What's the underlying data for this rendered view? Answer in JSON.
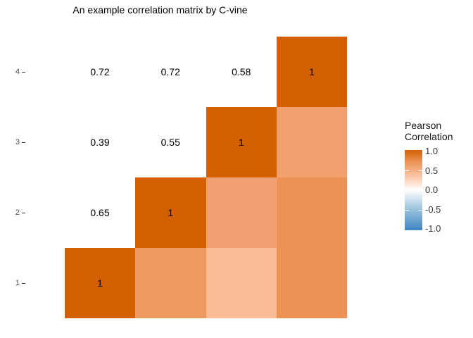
{
  "title": "An example correlation matrix by C-vine",
  "axes": {
    "y_labels": [
      "4",
      "3",
      "2",
      "1"
    ]
  },
  "legend": {
    "title_lines": [
      "Pearson",
      "Correlation"
    ],
    "tick_labels": [
      "1.0",
      "0.5",
      "0.0",
      "-0.5",
      "-1.0"
    ],
    "colors": {
      "high": "#D45F00",
      "mid": "#FFFFFF",
      "low": "#3D85C2",
      "gradient_stops": [
        "#D45F00",
        "#EC9254",
        "#FABD98",
        "#FFFFFF",
        "#A9CBE3",
        "#6FA6D1",
        "#3D85C2"
      ]
    }
  },
  "cells": {
    "text_labels": [
      {
        "row": 4,
        "col": 1,
        "text": "0.72"
      },
      {
        "row": 4,
        "col": 2,
        "text": "0.72"
      },
      {
        "row": 4,
        "col": 3,
        "text": "0.58"
      },
      {
        "row": 3,
        "col": 1,
        "text": "0.39"
      },
      {
        "row": 3,
        "col": 2,
        "text": "0.55"
      },
      {
        "row": 2,
        "col": 1,
        "text": "0.65"
      }
    ],
    "tiles": [
      {
        "row": 4,
        "col": 4,
        "value": 1,
        "label": "1",
        "color": "#D45F00"
      },
      {
        "row": 3,
        "col": 3,
        "value": 1,
        "label": "1",
        "color": "#D45F00"
      },
      {
        "row": 2,
        "col": 2,
        "value": 1,
        "label": "1",
        "color": "#D45F00"
      },
      {
        "row": 1,
        "col": 1,
        "value": 1,
        "label": "1",
        "color": "#D45F00"
      },
      {
        "row": 3,
        "col": 4,
        "value": 0.58,
        "label": "",
        "color": "#F2A06E"
      },
      {
        "row": 2,
        "col": 3,
        "value": 0.55,
        "label": "",
        "color": "#F2A272"
      },
      {
        "row": 2,
        "col": 4,
        "value": 0.72,
        "label": "",
        "color": "#EC9254"
      },
      {
        "row": 1,
        "col": 2,
        "value": 0.65,
        "label": "",
        "color": "#EE9960"
      },
      {
        "row": 1,
        "col": 3,
        "value": 0.39,
        "label": "",
        "color": "#FABD98"
      },
      {
        "row": 1,
        "col": 4,
        "value": 0.72,
        "label": "",
        "color": "#EC9254"
      }
    ]
  },
  "chart_data": {
    "type": "heatmap",
    "title": "An example correlation matrix by C-vine",
    "variables": [
      "1",
      "2",
      "3",
      "4"
    ],
    "matrix": [
      [
        1.0,
        0.65,
        0.39,
        0.72
      ],
      [
        0.65,
        1.0,
        0.55,
        0.72
      ],
      [
        0.39,
        0.55,
        1.0,
        0.58
      ],
      [
        0.72,
        0.72,
        0.58,
        1.0
      ]
    ],
    "display": "lower triangle shown as numeric text on white, diagonal and upper triangle shown as colored tiles; diagonal tiles labeled 1",
    "legend_title": "Pearson Correlation",
    "colorbar_ticks": [
      1.0,
      0.5,
      0.0,
      -0.5,
      -1.0
    ],
    "colorbar_range": [
      -1.0,
      1.0
    ],
    "color_scale": {
      "high": "#D45F00",
      "mid": "#FFFFFF",
      "low": "#3D85C2"
    },
    "grid": false,
    "legend_position": "right"
  }
}
